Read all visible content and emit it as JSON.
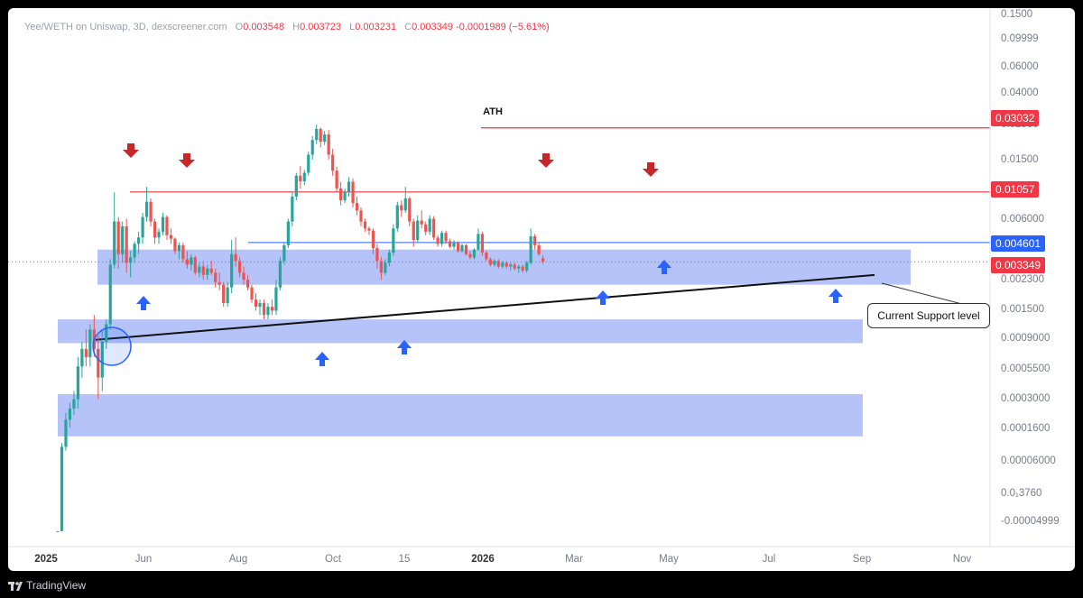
{
  "header": {
    "pair": "Yee/WETH on Uniswap, 3D, dexscreener.com",
    "o_label": "O",
    "o_value": "0.003548",
    "h_label": "H",
    "h_value": "0.003723",
    "l_label": "L",
    "l_value": "0.003231",
    "c_label": "C",
    "c_value": "0.003349",
    "change": "-0.0001989 (−5.61%)"
  },
  "footer": {
    "brand": "TradingView"
  },
  "annotations": {
    "ath_label": "ATH",
    "support_callout": "Current Support level"
  },
  "price_tags": {
    "ath": "0.03032",
    "resistance": "0.01057",
    "current_line": "0.004601",
    "last_price": "0.003349"
  },
  "colors": {
    "up": "#26a69a",
    "down": "#ef5350",
    "resistance": "#f23645",
    "blue_line": "#2962ff",
    "zone": "#a9b9f7",
    "arrow_up": "#2962ff",
    "arrow_down": "#c62828"
  },
  "chart_data": {
    "type": "candlestick",
    "y_scale": "log",
    "y_ticks": [
      "0.1500",
      "0.09999",
      "0.06000",
      "0.04000",
      "0.02500",
      "0.01500",
      "0.006000",
      "0.002300",
      "0.001500",
      "0.0009000",
      "0.0005500",
      "0.0003000",
      "0.0001600",
      "0.00006000",
      "0.0₁3760",
      "-0.00004999"
    ],
    "x_ticks": [
      "2025",
      "Jun",
      "Aug",
      "Oct",
      "15",
      "2026",
      "Mar",
      "May",
      "Jul",
      "Sep",
      "Nov"
    ],
    "horizontal_levels": [
      {
        "price": 0.03032,
        "label": "ATH"
      },
      {
        "price": 0.01057
      },
      {
        "price": 0.004601
      }
    ],
    "support_zones": [
      {
        "low": 0.0023,
        "high": 0.0041
      },
      {
        "low": 0.00088,
        "high": 0.0013
      },
      {
        "low": 0.00019,
        "high": 0.00038
      }
    ],
    "trendline": {
      "from_price": 0.00093,
      "to_price": 0.0027
    },
    "last_price": 0.003349,
    "candles": [
      [
        4e-05,
        4e-05,
        4e-05,
        4e-05
      ],
      [
        4e-05,
        0.00017,
        4e-05,
        0.00016
      ],
      [
        0.00016,
        0.00028,
        0.00015,
        0.00025
      ],
      [
        0.00025,
        0.00033,
        0.00022,
        0.0003
      ],
      [
        0.0003,
        0.0004,
        0.00027,
        0.00035
      ],
      [
        0.00035,
        0.0007,
        0.0003,
        0.0006
      ],
      [
        0.0006,
        0.0009,
        0.0005,
        0.0008
      ],
      [
        0.0008,
        0.0011,
        0.0006,
        0.0007
      ],
      [
        0.0007,
        0.0012,
        0.0006,
        0.0011
      ],
      [
        0.0011,
        0.0014,
        0.0007,
        0.0008
      ],
      [
        0.0008,
        0.001,
        0.00035,
        0.0005
      ],
      [
        0.0005,
        0.0011,
        0.0004,
        0.0009
      ],
      [
        0.0009,
        0.0013,
        0.0008,
        0.0012
      ],
      [
        0.0012,
        0.0035,
        0.0011,
        0.0032
      ],
      [
        0.0032,
        0.0105,
        0.003,
        0.0065
      ],
      [
        0.0065,
        0.007,
        0.003,
        0.0038
      ],
      [
        0.0038,
        0.0065,
        0.0033,
        0.006
      ],
      [
        0.006,
        0.0068,
        0.0028,
        0.0033
      ],
      [
        0.0033,
        0.004,
        0.0026,
        0.0036
      ],
      [
        0.0036,
        0.0047,
        0.0033,
        0.0045
      ],
      [
        0.0045,
        0.0055,
        0.0038,
        0.005
      ],
      [
        0.005,
        0.0075,
        0.0045,
        0.007
      ],
      [
        0.007,
        0.0115,
        0.0065,
        0.009
      ],
      [
        0.009,
        0.0095,
        0.006,
        0.0065
      ],
      [
        0.0065,
        0.0068,
        0.0045,
        0.005
      ],
      [
        0.005,
        0.0058,
        0.0045,
        0.0055
      ],
      [
        0.0055,
        0.0075,
        0.0052,
        0.007
      ],
      [
        0.007,
        0.0072,
        0.0048,
        0.0052
      ],
      [
        0.0052,
        0.0058,
        0.0045,
        0.0049
      ],
      [
        0.0049,
        0.005,
        0.0038,
        0.004
      ],
      [
        0.004,
        0.0046,
        0.0035,
        0.0044
      ],
      [
        0.0044,
        0.0046,
        0.0033,
        0.0035
      ],
      [
        0.0035,
        0.004,
        0.003,
        0.0032
      ],
      [
        0.0032,
        0.0038,
        0.0029,
        0.0036
      ],
      [
        0.0036,
        0.0037,
        0.0027,
        0.0028
      ],
      [
        0.0028,
        0.0033,
        0.0026,
        0.0031
      ],
      [
        0.0031,
        0.0034,
        0.0025,
        0.0027
      ],
      [
        0.0027,
        0.0032,
        0.0025,
        0.003
      ],
      [
        0.003,
        0.0034,
        0.0027,
        0.0028
      ],
      [
        0.0028,
        0.003,
        0.0022,
        0.0024
      ],
      [
        0.0024,
        0.0028,
        0.0021,
        0.0023
      ],
      [
        0.0023,
        0.0024,
        0.0016,
        0.0017
      ],
      [
        0.0017,
        0.0024,
        0.0016,
        0.0022
      ],
      [
        0.0022,
        0.0048,
        0.002,
        0.0038
      ],
      [
        0.0038,
        0.005,
        0.0031,
        0.0034
      ],
      [
        0.0034,
        0.0036,
        0.0026,
        0.0028
      ],
      [
        0.0028,
        0.0031,
        0.0023,
        0.0025
      ],
      [
        0.0025,
        0.0027,
        0.0021,
        0.0022
      ],
      [
        0.0022,
        0.0023,
        0.0017,
        0.0018
      ],
      [
        0.0018,
        0.002,
        0.0015,
        0.0016
      ],
      [
        0.0016,
        0.0018,
        0.0014,
        0.0017
      ],
      [
        0.0017,
        0.0018,
        0.0013,
        0.0014
      ],
      [
        0.0014,
        0.0017,
        0.0013,
        0.0016
      ],
      [
        0.0016,
        0.0018,
        0.0014,
        0.0015
      ],
      [
        0.0015,
        0.0025,
        0.0014,
        0.0022
      ],
      [
        0.0022,
        0.0036,
        0.0021,
        0.0034
      ],
      [
        0.0034,
        0.0046,
        0.0032,
        0.0044
      ],
      [
        0.0044,
        0.0068,
        0.0042,
        0.0065
      ],
      [
        0.0065,
        0.0105,
        0.006,
        0.0098
      ],
      [
        0.0098,
        0.0145,
        0.0092,
        0.0138
      ],
      [
        0.0138,
        0.0162,
        0.0112,
        0.0126
      ],
      [
        0.0126,
        0.0152,
        0.0118,
        0.0145
      ],
      [
        0.0145,
        0.0205,
        0.0138,
        0.0195
      ],
      [
        0.0195,
        0.0265,
        0.018,
        0.0248
      ],
      [
        0.0248,
        0.032,
        0.0232,
        0.0298
      ],
      [
        0.0298,
        0.0305,
        0.022,
        0.0242
      ],
      [
        0.0242,
        0.0288,
        0.0228,
        0.0272
      ],
      [
        0.0272,
        0.0292,
        0.018,
        0.0195
      ],
      [
        0.0195,
        0.0215,
        0.0138,
        0.015
      ],
      [
        0.015,
        0.016,
        0.0105,
        0.0112
      ],
      [
        0.0112,
        0.0125,
        0.0085,
        0.0092
      ],
      [
        0.0092,
        0.0112,
        0.0088,
        0.0106
      ],
      [
        0.0106,
        0.0135,
        0.0098,
        0.0125
      ],
      [
        0.0125,
        0.0132,
        0.0082,
        0.0088
      ],
      [
        0.0088,
        0.0098,
        0.0072,
        0.0078
      ],
      [
        0.0078,
        0.0082,
        0.006,
        0.0065
      ],
      [
        0.0065,
        0.0068,
        0.0055,
        0.0058
      ],
      [
        0.0058,
        0.006,
        0.0052,
        0.0056
      ],
      [
        0.0056,
        0.0058,
        0.0038,
        0.0042
      ],
      [
        0.0042,
        0.0045,
        0.003,
        0.0034
      ],
      [
        0.0034,
        0.0036,
        0.0025,
        0.0028
      ],
      [
        0.0028,
        0.0035,
        0.0027,
        0.0033
      ],
      [
        0.0033,
        0.0041,
        0.0031,
        0.0039
      ],
      [
        0.0039,
        0.0062,
        0.0037,
        0.0058
      ],
      [
        0.0058,
        0.009,
        0.0055,
        0.0085
      ],
      [
        0.0085,
        0.0092,
        0.007,
        0.0078
      ],
      [
        0.0078,
        0.0115,
        0.0075,
        0.0095
      ],
      [
        0.0095,
        0.0098,
        0.006,
        0.0065
      ],
      [
        0.0065,
        0.0068,
        0.0043,
        0.0048
      ],
      [
        0.0048,
        0.0072,
        0.0046,
        0.0066
      ],
      [
        0.0066,
        0.0078,
        0.0058,
        0.0062
      ],
      [
        0.0062,
        0.0065,
        0.0052,
        0.0055
      ],
      [
        0.0055,
        0.0072,
        0.0052,
        0.0068
      ],
      [
        0.0068,
        0.0071,
        0.0048,
        0.005
      ],
      [
        0.005,
        0.0052,
        0.0043,
        0.0045
      ],
      [
        0.0045,
        0.0056,
        0.0043,
        0.0054
      ],
      [
        0.0054,
        0.0056,
        0.0045,
        0.0047
      ],
      [
        0.0047,
        0.0049,
        0.0042,
        0.0043
      ],
      [
        0.0043,
        0.0048,
        0.0041,
        0.0046
      ],
      [
        0.0046,
        0.0047,
        0.0039,
        0.004
      ],
      [
        0.004,
        0.0045,
        0.0039,
        0.0044
      ],
      [
        0.0044,
        0.0045,
        0.0037,
        0.0038
      ],
      [
        0.0038,
        0.004,
        0.0035,
        0.0036
      ],
      [
        0.0036,
        0.0042,
        0.0035,
        0.0041
      ],
      [
        0.0041,
        0.0058,
        0.004,
        0.0053
      ],
      [
        0.0053,
        0.0055,
        0.0037,
        0.0039
      ],
      [
        0.0039,
        0.004,
        0.0034,
        0.0035
      ],
      [
        0.0035,
        0.0036,
        0.0031,
        0.0032
      ],
      [
        0.0032,
        0.0035,
        0.0031,
        0.0034
      ],
      [
        0.0034,
        0.0035,
        0.003,
        0.0031
      ],
      [
        0.0031,
        0.0034,
        0.003,
        0.0033
      ],
      [
        0.0033,
        0.0034,
        0.003,
        0.0031
      ],
      [
        0.0031,
        0.0033,
        0.0029,
        0.0032
      ],
      [
        0.0032,
        0.0033,
        0.0029,
        0.003
      ],
      [
        0.003,
        0.0032,
        0.0028,
        0.0031
      ],
      [
        0.0031,
        0.0032,
        0.0028,
        0.0029
      ],
      [
        0.0029,
        0.0034,
        0.0028,
        0.0033
      ],
      [
        0.0033,
        0.0058,
        0.0032,
        0.0051
      ],
      [
        0.0051,
        0.0053,
        0.0041,
        0.0044
      ],
      [
        0.0044,
        0.0046,
        0.0037,
        0.0038
      ],
      [
        0.003548,
        0.003723,
        0.003231,
        0.003349
      ]
    ]
  }
}
